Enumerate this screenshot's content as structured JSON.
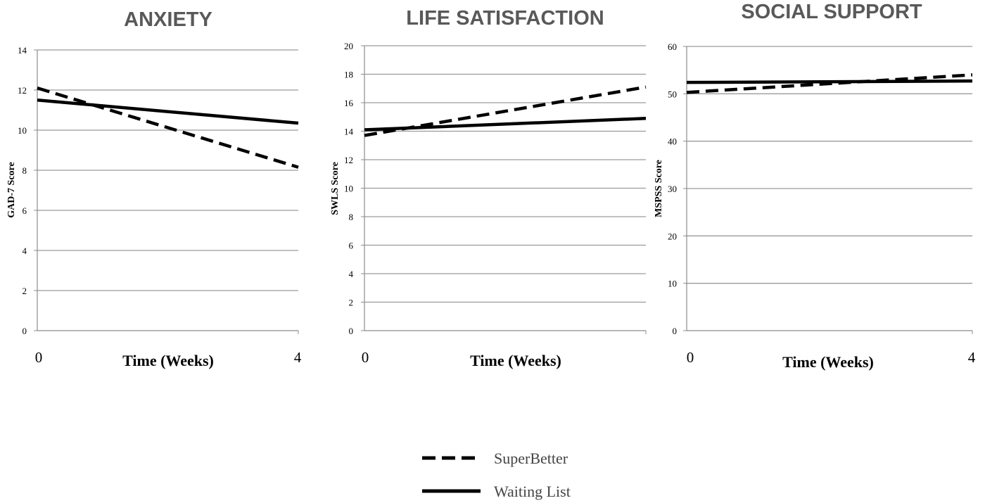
{
  "legend": [
    {
      "name": "SuperBetter",
      "style": "dashed"
    },
    {
      "name": "Waiting List",
      "style": "solid"
    }
  ],
  "chart_data": [
    {
      "type": "line",
      "title": "ANXIETY",
      "xlabel": "Time (Weeks)",
      "ylabel": "GAD-7 Score",
      "x": [
        0,
        4
      ],
      "x_ticks": [
        "0",
        "4"
      ],
      "ylim": [
        0,
        14
      ],
      "y_ticks": [
        0,
        2,
        4,
        6,
        8,
        10,
        12,
        14
      ],
      "grid": true,
      "series": [
        {
          "name": "SuperBetter",
          "values": [
            12.1,
            8.15
          ]
        },
        {
          "name": "Waiting List",
          "values": [
            11.5,
            10.35
          ]
        }
      ]
    },
    {
      "type": "line",
      "title": "LIFE SATISFACTION",
      "xlabel": "Time (Weeks)",
      "ylabel": "SWLS Score",
      "x": [
        0,
        4
      ],
      "x_ticks": [
        "0",
        ""
      ],
      "ylim": [
        0,
        20
      ],
      "y_ticks": [
        0,
        2,
        4,
        6,
        8,
        10,
        12,
        14,
        16,
        18,
        20
      ],
      "grid": true,
      "series": [
        {
          "name": "SuperBetter",
          "values": [
            13.7,
            17.1
          ]
        },
        {
          "name": "Waiting List",
          "values": [
            14.1,
            14.9
          ]
        }
      ]
    },
    {
      "type": "line",
      "title": "SOCIAL SUPPORT",
      "xlabel": "Time (Weeks)",
      "ylabel": "MSPSS Score",
      "x": [
        0,
        4
      ],
      "x_ticks": [
        "0",
        "4"
      ],
      "ylim": [
        0,
        60
      ],
      "y_ticks": [
        0,
        10,
        20,
        30,
        40,
        50,
        60
      ],
      "grid": true,
      "series": [
        {
          "name": "SuperBetter",
          "values": [
            50.3,
            54.0
          ]
        },
        {
          "name": "Waiting List",
          "values": [
            52.4,
            52.7
          ]
        }
      ]
    }
  ]
}
